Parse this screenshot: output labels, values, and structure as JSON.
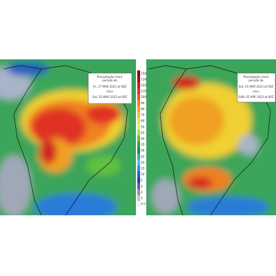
{
  "colorbar": {
    "labels": [
      "150",
      "130",
      "120",
      "110",
      "100",
      "90",
      "80",
      "70",
      "60",
      "50",
      "45",
      "40",
      "35",
      "30",
      "25",
      "20",
      "15",
      "10",
      "5",
      "3",
      "2",
      "1",
      "0.5"
    ]
  },
  "maps": [
    {
      "legend": {
        "title": "Precipitação (mm)",
        "subtitle": "período de",
        "start": "Fri, 17 MAR 2023 at 00Z",
        "sep": "<to>",
        "end": "Sat, 25 MAR 2023 at 00Z"
      }
    },
    {
      "legend": {
        "title": "Precipitação (mm)",
        "subtitle": "período de",
        "start": "Sat, 25 MAR 2023 at 00Z",
        "sep": "<to>",
        "end": "SUN, 02 APR 2023 at 00Z"
      }
    }
  ]
}
